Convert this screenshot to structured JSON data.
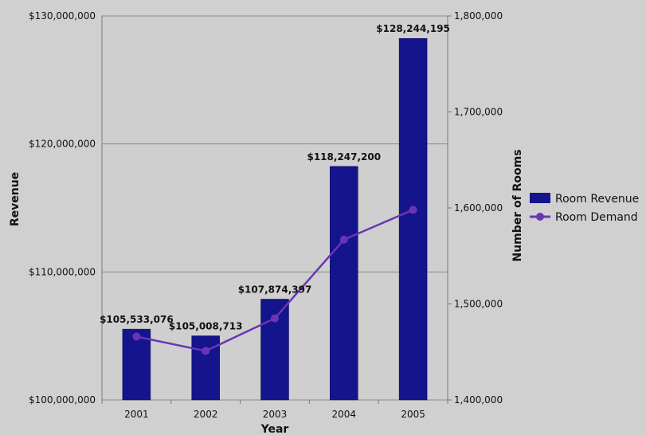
{
  "chart_data": {
    "type": "bar",
    "categories": [
      "2001",
      "2002",
      "2003",
      "2004",
      "2005"
    ],
    "xlabel": "Year",
    "ylabel": "Revenue",
    "y2label": "Number of Rooms",
    "ylim": [
      100000000,
      130000000
    ],
    "y2lim": [
      1400000,
      1800000
    ],
    "yticks": [
      "$100,000,000",
      "$110,000,000",
      "$120,000,000",
      "$130,000,000"
    ],
    "y2ticks": [
      "1,400,000",
      "1,500,000",
      "1,600,000",
      "1,700,000",
      "1,800,000"
    ],
    "grid": true,
    "legend_position": "right",
    "series": [
      {
        "name": "Room Revenue",
        "kind": "bar",
        "axis": "left",
        "color": "#14148c",
        "values": [
          105533076,
          105008713,
          107874397,
          118247200,
          128244195
        ],
        "labels": [
          "$105,533,076",
          "$105,008,713",
          "$107,874,397",
          "$118,247,200",
          "$128,244,195"
        ]
      },
      {
        "name": "Room Demand",
        "kind": "line",
        "axis": "right",
        "color": "#6a35b5",
        "values": [
          1466000,
          1451000,
          1485000,
          1567000,
          1598000
        ]
      }
    ]
  }
}
